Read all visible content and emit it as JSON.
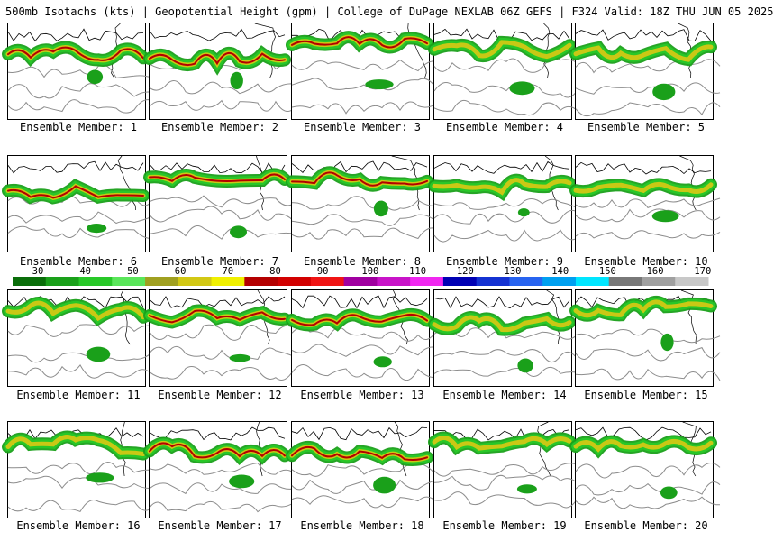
{
  "header": {
    "title": "500mb Isotachs (kts) | Geopotential Height (gpm) | College of DuPage NEXLAB   06Z GEFS | F324 Valid: 18Z THU JUN 05 2025"
  },
  "panels": [
    {
      "label": "Ensemble Member: 1"
    },
    {
      "label": "Ensemble Member: 2"
    },
    {
      "label": "Ensemble Member: 3"
    },
    {
      "label": "Ensemble Member: 4"
    },
    {
      "label": "Ensemble Member: 5"
    },
    {
      "label": "Ensemble Member: 6"
    },
    {
      "label": "Ensemble Member: 7"
    },
    {
      "label": "Ensemble Member: 8"
    },
    {
      "label": "Ensemble Member: 9"
    },
    {
      "label": "Ensemble Member: 10"
    },
    {
      "label": "Ensemble Member: 11"
    },
    {
      "label": "Ensemble Member: 12"
    },
    {
      "label": "Ensemble Member: 13"
    },
    {
      "label": "Ensemble Member: 14"
    },
    {
      "label": "Ensemble Member: 15"
    },
    {
      "label": "Ensemble Member: 16"
    },
    {
      "label": "Ensemble Member: 17"
    },
    {
      "label": "Ensemble Member: 18"
    },
    {
      "label": "Ensemble Member: 19"
    },
    {
      "label": "Ensemble Member: 20"
    }
  ],
  "colorbar": {
    "ticks": [
      "30",
      "40",
      "50",
      "60",
      "70",
      "80",
      "90",
      "100",
      "110",
      "120",
      "130",
      "140",
      "150",
      "160",
      "170"
    ],
    "colors": [
      "#0a6e0a",
      "#1aa01a",
      "#28c828",
      "#5ae65a",
      "#a0a020",
      "#d2c814",
      "#f0f000",
      "#b40000",
      "#d20000",
      "#f01414",
      "#a000a0",
      "#c814c8",
      "#f028f0",
      "#0000b4",
      "#1432d2",
      "#2864f0",
      "#00a0f0",
      "#00e6ff",
      "#787878",
      "#a0a0a0",
      "#c8c8c8"
    ]
  },
  "legend_colors": {
    "jet_low": "#1aa01a",
    "jet_mid": "#d2c814",
    "jet_high": "#b40000",
    "contour": "#8c8c8c",
    "coast": "#000000"
  }
}
